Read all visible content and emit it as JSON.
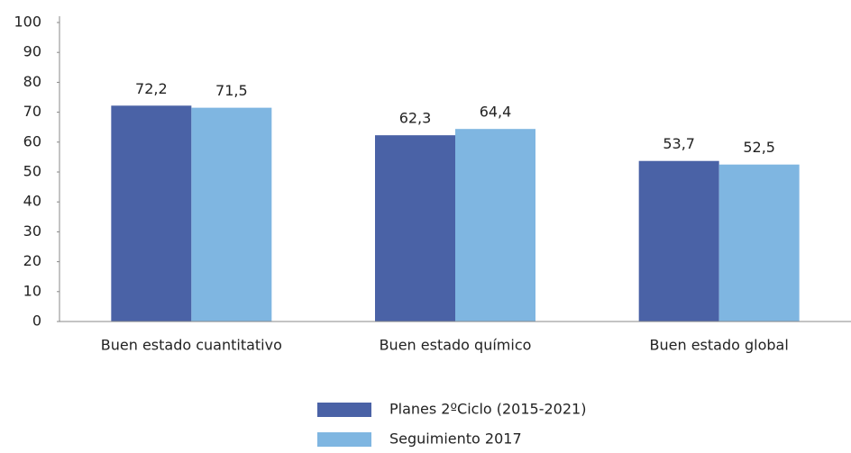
{
  "chart_data": {
    "type": "bar",
    "categories": [
      "Buen estado cuantitativo",
      "Buen estado químico",
      "Buen estado global"
    ],
    "series": [
      {
        "name": "Planes 2ºCiclo (2015-2021)",
        "color": "#4a62a6",
        "values": [
          72.2,
          62.3,
          53.7
        ],
        "value_labels": [
          "72,2",
          "62,3",
          "53,7"
        ]
      },
      {
        "name": "Seguimiento 2017",
        "color": "#7fb6e1",
        "values": [
          71.5,
          64.4,
          52.5
        ],
        "value_labels": [
          "71,5",
          "64,4",
          "52,5"
        ]
      }
    ],
    "ylim": [
      0,
      100
    ],
    "yticks": [
      0,
      10,
      20,
      30,
      40,
      50,
      60,
      70,
      80,
      90,
      100
    ],
    "grid": false
  }
}
